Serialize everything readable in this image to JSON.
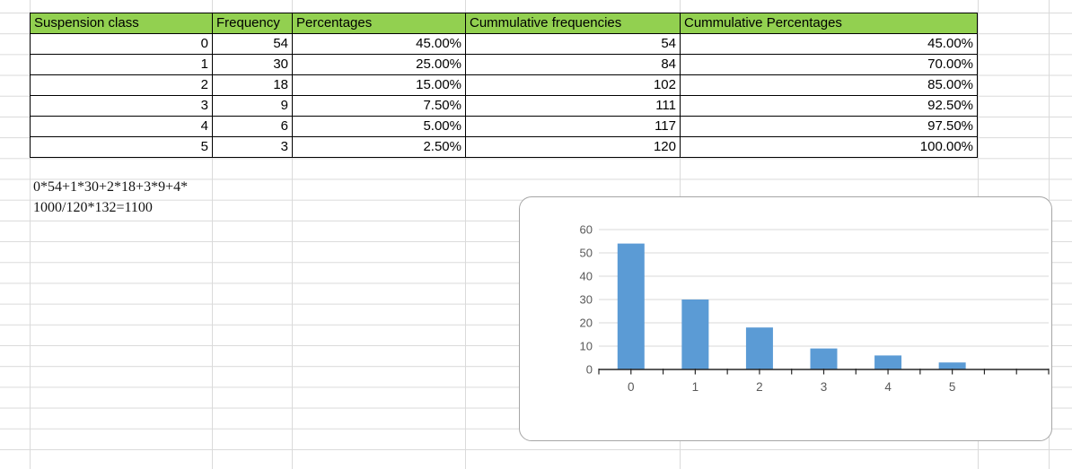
{
  "sheet": {
    "gridline_color": "#DADADA"
  },
  "table": {
    "header_bg": "#92D050",
    "header_text_color": "#000000",
    "border_color": "#000000",
    "headers": [
      "Suspension class",
      "Frequency",
      "Percentages",
      "Cummulative frequencies",
      "Cummulative Percentages"
    ],
    "rows": [
      [
        "0",
        "54",
        "45.00%",
        "54",
        "45.00%"
      ],
      [
        "1",
        "30",
        "25.00%",
        "84",
        "70.00%"
      ],
      [
        "2",
        "18",
        "15.00%",
        "102",
        "85.00%"
      ],
      [
        "3",
        "9",
        "7.50%",
        "111",
        "92.50%"
      ],
      [
        "4",
        "6",
        "5.00%",
        "117",
        "97.50%"
      ],
      [
        "5",
        "3",
        "2.50%",
        "120",
        "100.00%"
      ]
    ]
  },
  "notes": {
    "line1": "0*54+1*30+2*18+3*9+4*",
    "line2": "1000/120*132=1100"
  },
  "chart_data": {
    "type": "bar",
    "title": "",
    "xlabel": "",
    "ylabel": "",
    "categories": [
      "0",
      "1",
      "2",
      "3",
      "4",
      "5"
    ],
    "values": [
      54,
      30,
      18,
      9,
      6,
      3
    ],
    "ylim": [
      0,
      60
    ],
    "yticks": [
      0,
      10,
      20,
      30,
      40,
      50,
      60
    ],
    "grid": true,
    "legend": false,
    "extra_empty_category_slots": 1,
    "bar_color": "#5B9BD5",
    "axis_color": "#262626",
    "tick_label_color": "#595959",
    "plot_gridline_color": "#D9D9D9",
    "frame_border_color": "#A6A6A6"
  }
}
